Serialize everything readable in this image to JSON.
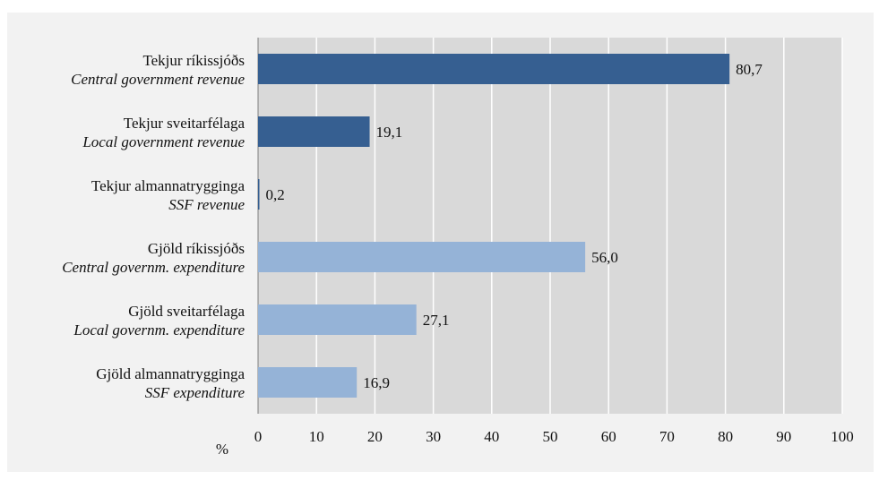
{
  "chart_data": {
    "type": "bar",
    "orientation": "horizontal",
    "categories": [
      {
        "is": "Tekjur ríkissjóðs",
        "en": "Central government revenue"
      },
      {
        "is": "Tekjur sveitarfélaga",
        "en": "Local government revenue"
      },
      {
        "is": "Tekjur almannatrygginga",
        "en": "SSF revenue"
      },
      {
        "is": "Gjöld ríkissjóðs",
        "en": "Central governm. expenditure"
      },
      {
        "is": "Gjöld sveitarfélaga",
        "en": "Local governm. expenditure"
      },
      {
        "is": "Gjöld almannatrygginga",
        "en": "SSF expenditure"
      }
    ],
    "values": [
      80.7,
      19.1,
      0.2,
      56.0,
      27.1,
      16.9
    ],
    "value_labels": [
      "80,7",
      "19,1",
      "0,2",
      "56,0",
      "27,1",
      "16,9"
    ],
    "bar_colors": [
      "#365f91",
      "#365f91",
      "#365f91",
      "#95b3d7",
      "#95b3d7",
      "#95b3d7"
    ],
    "xlim": [
      0,
      100
    ],
    "x_ticks": [
      0,
      10,
      20,
      30,
      40,
      50,
      60,
      70,
      80,
      90,
      100
    ],
    "x_unit_label": "%",
    "grid": true,
    "plot_background": "#d9d9d9",
    "frame_background": "#f2f2f2"
  }
}
